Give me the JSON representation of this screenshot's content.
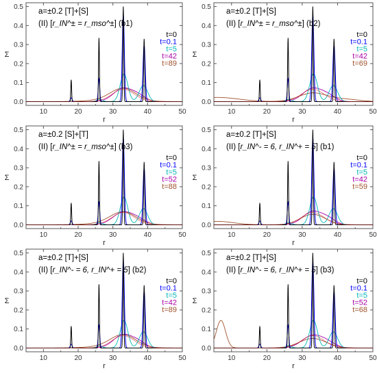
{
  "colors": {
    "t0": "#000000",
    "t01": "#0000ff",
    "t5": "#00b5b5",
    "t42": "#aa00aa",
    "t52": "#aa00aa",
    "tlate": "#a0522d",
    "red": "#d02020",
    "frame": "#555555"
  },
  "chart_data": [
    {
      "type": "line",
      "label_line1": "a=±0.2 [T]+[S]",
      "label_line2_prefix": "(II) [",
      "label_line2_body": "r_IN^± = r_mso^±",
      "label_line2_suffix": "] (b1)",
      "xlabel": "r",
      "ylabel": "Σ",
      "xlim": [
        5,
        50
      ],
      "ylim": [
        -0.02,
        0.52
      ],
      "xticks": [
        10,
        20,
        30,
        40,
        50
      ],
      "yticks": [
        0.0,
        0.1,
        0.2,
        0.3,
        0.4,
        0.5
      ],
      "xtick_labels": [
        "10",
        "20",
        "30",
        "40",
        "50"
      ],
      "ytick_labels": [
        "0.0",
        "0.1",
        "0.2",
        "0.3",
        "0.4",
        "0.5"
      ],
      "legend": [
        "t=0",
        "t=0.1",
        "t=5",
        "t=42",
        "t=89"
      ],
      "series": [
        {
          "name": "t=0",
          "peaks": [
            [
              18.0,
              0.115,
              0.12
            ],
            [
              26.0,
              0.335,
              0.13
            ],
            [
              33.0,
              0.5,
              0.14
            ],
            [
              39.0,
              0.33,
              0.15
            ]
          ]
        },
        {
          "name": "t=0.1",
          "peaks": [
            [
              18.0,
              0.02,
              0.25
            ],
            [
              26.0,
              0.12,
              0.22
            ],
            [
              33.0,
              0.46,
              0.3
            ],
            [
              39.0,
              0.3,
              0.32
            ]
          ]
        },
        {
          "name": "t=5",
          "peaks": [
            [
              26.2,
              0.012,
              0.8
            ],
            [
              33.2,
              0.145,
              1.1
            ],
            [
              38.8,
              0.085,
              1.2
            ]
          ]
        },
        {
          "name": "t=42",
          "peaks": [
            [
              33.0,
              0.07,
              2.8
            ],
            [
              37.5,
              0.025,
              2.0
            ]
          ]
        },
        {
          "name": "t=89",
          "peaks": [
            [
              33.0,
              0.062,
              3.6
            ],
            [
              30.0,
              0.01,
              6.0
            ]
          ]
        }
      ]
    },
    {
      "type": "line",
      "label_line1": "a=±0.2 [T]+[S]",
      "label_line2_prefix": "(II) [",
      "label_line2_body": "r_IN^± = r_mso^±",
      "label_line2_suffix": "] (b2)",
      "xlabel": "r",
      "ylabel": "Σ",
      "xlim": [
        5,
        50
      ],
      "ylim": [
        -0.02,
        0.52
      ],
      "xticks": [
        10,
        20,
        30,
        40,
        50
      ],
      "yticks": [
        0.0,
        0.1,
        0.2,
        0.3,
        0.4,
        0.5
      ],
      "xtick_labels": [
        "10",
        "20",
        "30",
        "40",
        "50"
      ],
      "ytick_labels": [
        "0.0",
        "0.1",
        "0.2",
        "0.3",
        "0.4",
        "0.5"
      ],
      "legend": [
        "t=0",
        "t=0.1",
        "t=5",
        "t=42",
        "t=69"
      ],
      "series": [
        {
          "name": "t=0",
          "peaks": [
            [
              18.0,
              0.115,
              0.12
            ],
            [
              26.0,
              0.335,
              0.13
            ],
            [
              33.0,
              0.5,
              0.14
            ],
            [
              39.0,
              0.33,
              0.15
            ]
          ]
        },
        {
          "name": "t=0.1",
          "peaks": [
            [
              18.0,
              0.02,
              0.25
            ],
            [
              26.0,
              0.12,
              0.22
            ],
            [
              33.0,
              0.46,
              0.3
            ],
            [
              39.0,
              0.3,
              0.32
            ]
          ]
        },
        {
          "name": "t=5",
          "peaks": [
            [
              26.2,
              0.012,
              0.8
            ],
            [
              33.2,
              0.145,
              1.1
            ],
            [
              38.8,
              0.085,
              1.2
            ]
          ]
        },
        {
          "name": "t=42",
          "peaks": [
            [
              33.0,
              0.07,
              2.8
            ],
            [
              37.5,
              0.025,
              2.0
            ]
          ]
        },
        {
          "name": "t=69",
          "peaks": [
            [
              33.0,
              0.045,
              4.0
            ],
            [
              6.0,
              0.022,
              6.0
            ],
            [
              42.0,
              0.012,
              4.0
            ]
          ]
        }
      ]
    },
    {
      "type": "line",
      "label_line1": "a=±0.2 [S]+[T]",
      "label_line2_prefix": "(II) [",
      "label_line2_body": "r_IN^± = r_mso^±",
      "label_line2_suffix": "] (b3)",
      "xlabel": "r",
      "ylabel": "Σ",
      "xlim": [
        5,
        50
      ],
      "ylim": [
        -0.02,
        0.52
      ],
      "xticks": [
        10,
        20,
        30,
        40,
        50
      ],
      "yticks": [
        0.0,
        0.1,
        0.2,
        0.3,
        0.4,
        0.5
      ],
      "xtick_labels": [
        "10",
        "20",
        "30",
        "40",
        "50"
      ],
      "ytick_labels": [
        "0.0",
        "0.1",
        "0.2",
        "0.3",
        "0.4",
        "0.5"
      ],
      "legend": [
        "t=0",
        "t=0.1",
        "t=5",
        "t=52",
        "t=88"
      ],
      "series": [
        {
          "name": "t=0",
          "peaks": [
            [
              18.0,
              0.115,
              0.12
            ],
            [
              26.0,
              0.335,
              0.13
            ],
            [
              33.0,
              0.5,
              0.14
            ],
            [
              39.0,
              0.33,
              0.15
            ]
          ]
        },
        {
          "name": "t=0.1",
          "peaks": [
            [
              18.0,
              0.02,
              0.25
            ],
            [
              26.0,
              0.12,
              0.22
            ],
            [
              33.0,
              0.46,
              0.3
            ],
            [
              39.0,
              0.3,
              0.32
            ]
          ]
        },
        {
          "name": "t=5",
          "peaks": [
            [
              26.2,
              0.012,
              0.8
            ],
            [
              33.2,
              0.145,
              1.1
            ],
            [
              38.8,
              0.085,
              1.2
            ]
          ]
        },
        {
          "name": "t=52",
          "peaks": [
            [
              33.0,
              0.066,
              3.0
            ],
            [
              37.5,
              0.02,
              2.2
            ]
          ]
        },
        {
          "name": "t=88",
          "peaks": [
            [
              33.0,
              0.06,
              3.6
            ],
            [
              30.0,
              0.01,
              6.0
            ]
          ]
        }
      ]
    },
    {
      "type": "line",
      "label_line1": "a=±0.2 [T]+[S]",
      "label_line2_prefix": "(II) [",
      "label_line2_body": "r_IN^- = 6, r_IN^+ = 5",
      "label_line2_suffix": "] (b1)",
      "xlabel": "r",
      "ylabel": "Σ",
      "xlim": [
        5,
        50
      ],
      "ylim": [
        -0.02,
        0.52
      ],
      "xticks": [
        10,
        20,
        30,
        40,
        50
      ],
      "yticks": [
        0.0,
        0.1,
        0.2,
        0.3,
        0.4,
        0.5
      ],
      "xtick_labels": [
        "10",
        "20",
        "30",
        "40",
        "50"
      ],
      "ytick_labels": [
        "0.0",
        "0.1",
        "0.2",
        "0.3",
        "0.4",
        "0.5"
      ],
      "legend": [
        "t=0",
        "t=0.1",
        "t=5",
        "t=42",
        "t=59"
      ],
      "series": [
        {
          "name": "t=0",
          "peaks": [
            [
              18.0,
              0.115,
              0.12
            ],
            [
              26.0,
              0.335,
              0.13
            ],
            [
              33.0,
              0.5,
              0.14
            ],
            [
              39.0,
              0.33,
              0.15
            ]
          ]
        },
        {
          "name": "t=0.1",
          "peaks": [
            [
              18.0,
              0.02,
              0.25
            ],
            [
              26.0,
              0.12,
              0.22
            ],
            [
              33.0,
              0.46,
              0.3
            ],
            [
              39.0,
              0.3,
              0.32
            ]
          ]
        },
        {
          "name": "t=5",
          "peaks": [
            [
              26.2,
              0.012,
              0.8
            ],
            [
              33.2,
              0.145,
              1.1
            ],
            [
              38.8,
              0.085,
              1.2
            ]
          ]
        },
        {
          "name": "t=42",
          "peaks": [
            [
              33.0,
              0.07,
              2.8
            ],
            [
              37.5,
              0.025,
              2.0
            ]
          ]
        },
        {
          "name": "t=59",
          "peaks": [
            [
              33.0,
              0.055,
              3.5
            ],
            [
              6.0,
              0.018,
              4.5
            ]
          ]
        }
      ]
    },
    {
      "type": "line",
      "label_line1": "a=±0.2  [T]+[S]",
      "label_line2_prefix": "(II) [",
      "label_line2_body": "r_IN^- = 6, r_IN^+ = 5",
      "label_line2_suffix": "] (b2)",
      "xlabel": "r",
      "ylabel": "Σ",
      "xlim": [
        5,
        50
      ],
      "ylim": [
        -0.02,
        0.52
      ],
      "xticks": [
        10,
        20,
        30,
        40,
        50
      ],
      "yticks": [
        0.0,
        0.1,
        0.2,
        0.3,
        0.4,
        0.5
      ],
      "xtick_labels": [
        "10",
        "20",
        "30",
        "40",
        "50"
      ],
      "ytick_labels": [
        "0.0",
        "0.1",
        "0.2",
        "0.3",
        "0.4",
        "0.5"
      ],
      "legend": [
        "t=0",
        "t=0.1",
        "t=5",
        "t=42",
        "t=89"
      ],
      "series": [
        {
          "name": "t=0",
          "peaks": [
            [
              18.0,
              0.115,
              0.12
            ],
            [
              26.0,
              0.335,
              0.13
            ],
            [
              33.0,
              0.5,
              0.14
            ],
            [
              39.0,
              0.33,
              0.15
            ]
          ]
        },
        {
          "name": "t=0.1",
          "peaks": [
            [
              18.0,
              0.02,
              0.25
            ],
            [
              26.0,
              0.12,
              0.22
            ],
            [
              33.0,
              0.46,
              0.3
            ],
            [
              39.0,
              0.3,
              0.32
            ]
          ]
        },
        {
          "name": "t=5",
          "peaks": [
            [
              26.2,
              0.012,
              0.8
            ],
            [
              33.2,
              0.145,
              1.1
            ],
            [
              38.8,
              0.085,
              1.2
            ]
          ]
        },
        {
          "name": "t=42",
          "peaks": [
            [
              33.0,
              0.07,
              2.8
            ],
            [
              37.5,
              0.025,
              2.0
            ]
          ]
        },
        {
          "name": "t=89",
          "peaks": [
            [
              33.0,
              0.062,
              3.6
            ],
            [
              30.0,
              0.01,
              6.0
            ]
          ]
        }
      ]
    },
    {
      "type": "line",
      "label_line1": "a=±0.2 [T]+[S]",
      "label_line2_prefix": "(II) [",
      "label_line2_body": "r_IN^- = 6, r_IN^+ = 5",
      "label_line2_suffix": "] (b3)",
      "xlabel": "r",
      "ylabel": "Σ",
      "xlim": [
        5,
        50
      ],
      "ylim": [
        -0.02,
        0.52
      ],
      "xticks": [
        10,
        20,
        30,
        40,
        50
      ],
      "yticks": [
        0.0,
        0.1,
        0.2,
        0.3,
        0.4,
        0.5
      ],
      "xtick_labels": [
        "10",
        "20",
        "30",
        "40",
        "50"
      ],
      "ytick_labels": [
        "0.0",
        "0.1",
        "0.2",
        "0.3",
        "0.4",
        "0.5"
      ],
      "legend": [
        "t=0",
        "t=0.1",
        "t=5",
        "t=52",
        "t=68"
      ],
      "series": [
        {
          "name": "t=0",
          "peaks": [
            [
              18.0,
              0.115,
              0.12
            ],
            [
              26.0,
              0.335,
              0.13
            ],
            [
              33.0,
              0.5,
              0.14
            ],
            [
              39.0,
              0.33,
              0.15
            ]
          ]
        },
        {
          "name": "t=0.1",
          "peaks": [
            [
              18.0,
              0.02,
              0.25
            ],
            [
              26.0,
              0.12,
              0.22
            ],
            [
              33.0,
              0.46,
              0.3
            ],
            [
              39.0,
              0.3,
              0.32
            ]
          ]
        },
        {
          "name": "t=5",
          "peaks": [
            [
              26.2,
              0.012,
              0.8
            ],
            [
              33.2,
              0.145,
              1.1
            ],
            [
              38.8,
              0.085,
              1.2
            ]
          ]
        },
        {
          "name": "t=52",
          "peaks": [
            [
              33.0,
              0.066,
              3.0
            ],
            [
              37.5,
              0.02,
              2.2
            ]
          ]
        },
        {
          "name": "t=68",
          "peaks": [
            [
              7.0,
              0.145,
              1.3
            ],
            [
              33.0,
              0.05,
              3.8
            ]
          ]
        }
      ]
    }
  ]
}
